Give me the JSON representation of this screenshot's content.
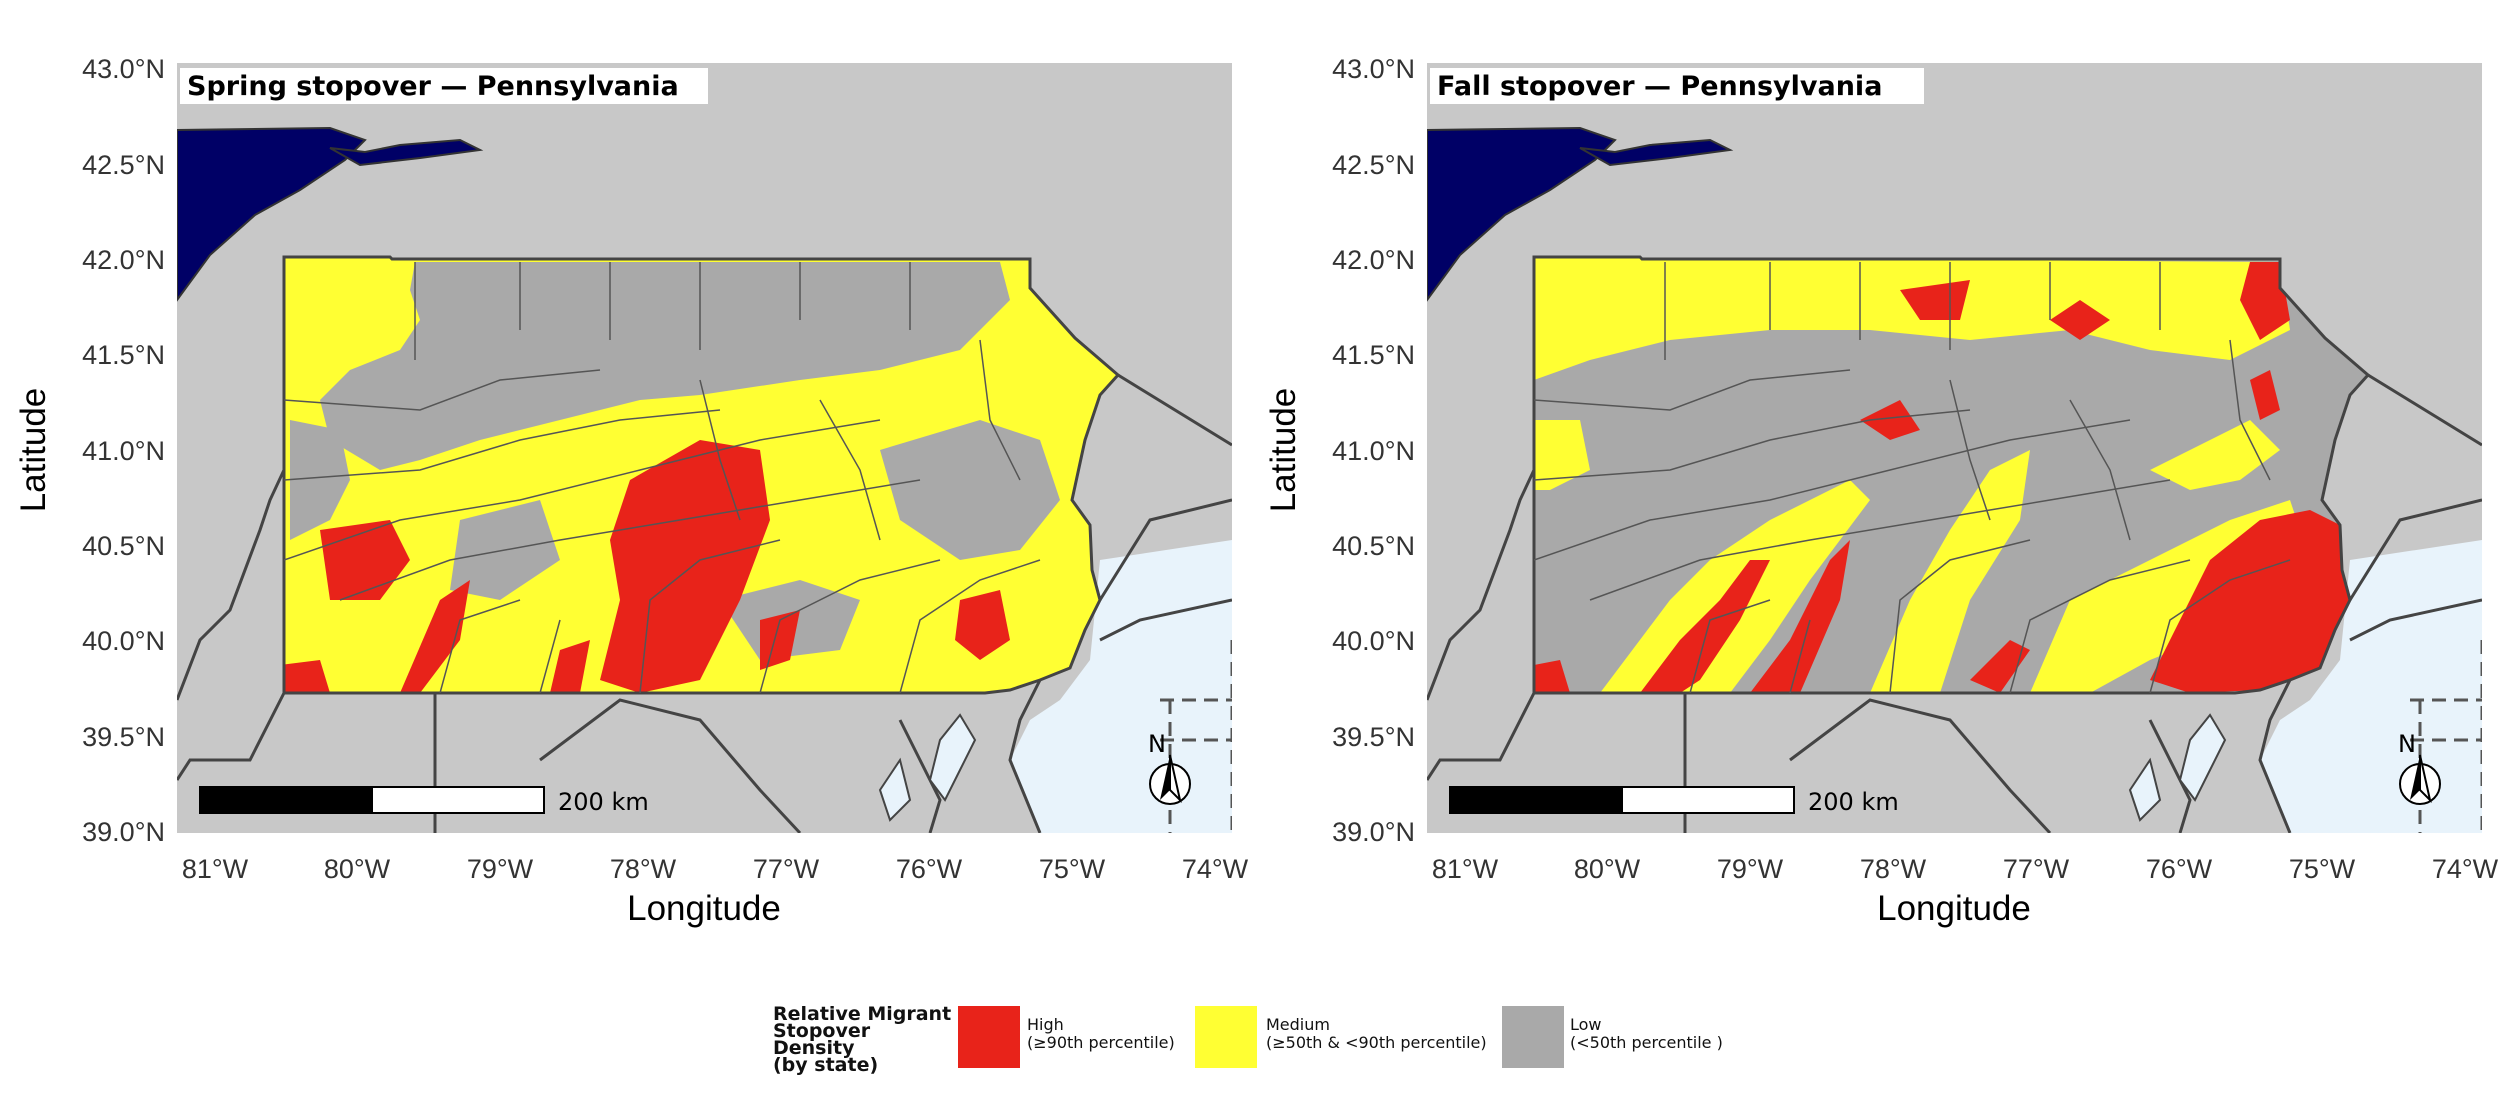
{
  "panels": [
    {
      "id": "spring",
      "title": "Spring stopover — Pennsylvania",
      "xlabel": "Longitude",
      "ylabel": "Latitude",
      "x_ticks": [
        "81°W",
        "80°W",
        "79°W",
        "78°W",
        "77°W",
        "76°W",
        "75°W",
        "74°W"
      ],
      "y_ticks": [
        "43.0°N",
        "42.5°N",
        "42.0°N",
        "41.5°N",
        "41.0°N",
        "40.5°N",
        "40.0°N",
        "39.5°N",
        "39.0°N"
      ],
      "scale_bar": "200 km",
      "north_arrow": "N"
    },
    {
      "id": "fall",
      "title": "Fall stopover — Pennsylvania",
      "xlabel": "Longitude",
      "ylabel": "Latitude",
      "x_ticks": [
        "81°W",
        "80°W",
        "79°W",
        "78°W",
        "77°W",
        "76°W",
        "75°W",
        "74°W"
      ],
      "y_ticks": [
        "43.0°N",
        "42.5°N",
        "42.0°N",
        "41.5°N",
        "41.0°N",
        "40.5°N",
        "40.0°N",
        "39.5°N",
        "39.0°N"
      ],
      "scale_bar": "200 km",
      "north_arrow": "N"
    }
  ],
  "legend": {
    "title_lines": [
      "Relative Migrant",
      "Stopover Density",
      "(by state)"
    ],
    "items": [
      {
        "label": "High",
        "sub": "(≥90th percentile)",
        "color": "#e8231a"
      },
      {
        "label": "Medium",
        "sub": "(≥50th & <90th percentile)",
        "color": "#ffff33"
      },
      {
        "label": "Low",
        "sub": "(<50th percentile )",
        "color": "#a9a9a9"
      }
    ]
  },
  "colors": {
    "background_land": "#c8c8c8",
    "lake": "#000066",
    "ocean": "#e8f3fb",
    "high": "#e8231a",
    "medium": "#ffff33",
    "low": "#a9a9a9"
  }
}
